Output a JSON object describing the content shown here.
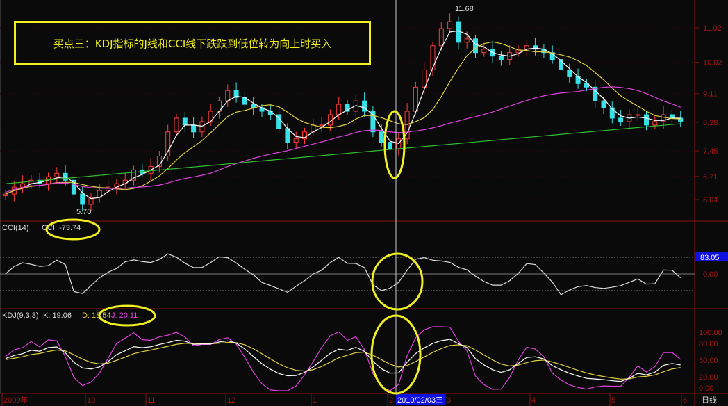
{
  "annotation": "买点三：KDJ指标的J线和CCI线下跌跌到低位转为向上时买入",
  "period_label": "日线",
  "cursor_date": "2010/02/03三",
  "chart_data": [
    {
      "type": "candlestick",
      "panel": "price",
      "y_ticks": [
        "11.02",
        "10.02",
        "9.11",
        "8.28",
        "7.45",
        "6.71",
        "6.04"
      ],
      "x_ticks": [
        "2009年",
        "10",
        "11",
        "12",
        "1",
        "2",
        "3",
        "4",
        "5",
        "6"
      ],
      "high_label": "11.68",
      "low_label": "5.70",
      "closes": [
        6.2,
        6.4,
        6.5,
        6.6,
        6.5,
        6.7,
        6.8,
        6.6,
        6.2,
        5.9,
        6.1,
        6.3,
        6.4,
        6.5,
        6.6,
        6.9,
        6.8,
        7.0,
        7.3,
        8.0,
        8.4,
        8.2,
        8.0,
        8.3,
        8.6,
        8.9,
        9.2,
        9.0,
        8.8,
        8.7,
        8.6,
        8.5,
        8.1,
        7.7,
        7.8,
        8.0,
        8.2,
        8.2,
        8.5,
        8.8,
        8.6,
        8.9,
        8.6,
        8.0,
        7.7,
        7.5,
        7.8,
        8.6,
        9.3,
        9.8,
        10.5,
        11.0,
        11.2,
        10.6,
        10.7,
        10.3,
        10.4,
        10.2,
        10.1,
        10.3,
        10.4,
        10.5,
        10.4,
        10.3,
        10.1,
        9.8,
        9.6,
        9.4,
        9.3,
        8.9,
        8.7,
        8.4,
        8.3,
        8.5,
        8.5,
        8.2,
        8.3,
        8.5,
        8.4,
        8.3
      ],
      "colors": {
        "up": "#ff3c3c",
        "down": "#38e0e8",
        "ma_short": "#ffffff",
        "ma_mid": "#e0d040",
        "ma_long": "#e040e0",
        "ma_longest": "#30c030"
      }
    },
    {
      "type": "line",
      "panel": "CCI",
      "title": "CCI(14)",
      "value_label": "CCI: -73.74",
      "y_ticks": [
        "0.00"
      ],
      "marker_value": "83.05"
    },
    {
      "type": "line",
      "panel": "KDJ",
      "title": "KDJ(9,3,3)",
      "k_label": "K: 19.06",
      "d_label": "D: 18.54",
      "j_label": "J: 20.11",
      "y_ticks": [
        "100.00",
        "80.00",
        "50.00",
        "20.00",
        "0.00"
      ],
      "colors": {
        "K": "#ffffff",
        "D": "#e0d040",
        "J": "#e040e0"
      }
    }
  ]
}
